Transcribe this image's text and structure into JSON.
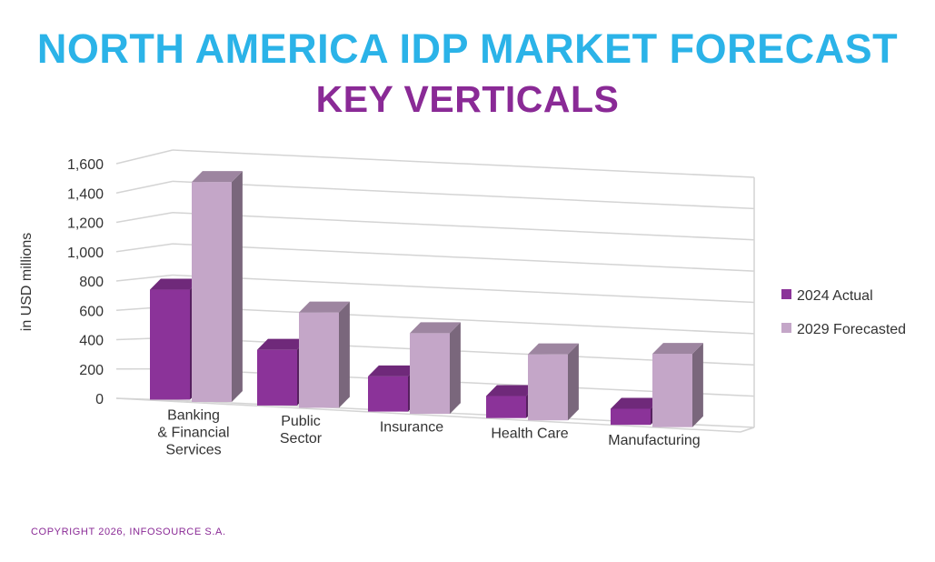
{
  "title": "NORTH AMERICA IDP MARKET FORECAST",
  "subtitle": "KEY VERTICALS",
  "copyright": "COPYRIGHT 2026, INFOSOURCE S.A.",
  "colors": {
    "title": "#2bb3e8",
    "subtitle": "#8a2a96",
    "copyright": "#8a2a96",
    "series_actual": "#8b3399",
    "series_forecast": "#c4a6c8",
    "grid": "#d4d4d4"
  },
  "chart_data": {
    "type": "bar",
    "title": "NORTH AMERICA IDP MARKET FORECAST",
    "subtitle": "KEY VERTICALS",
    "ylabel": "in USD millions",
    "xlabel": "",
    "ylim": [
      0,
      1600
    ],
    "yticks": [
      "0",
      "200",
      "400",
      "600",
      "800",
      "1,000",
      "1,200",
      "1,400",
      "1,600"
    ],
    "categories": [
      [
        "Banking",
        "& Financial",
        "Services"
      ],
      [
        "Public",
        "Sector"
      ],
      [
        "Insurance"
      ],
      [
        "Health Care"
      ],
      [
        "Manufacturing"
      ]
    ],
    "series": [
      {
        "name": "2024 Actual",
        "values": [
          750,
          380,
          240,
          150,
          110
        ]
      },
      {
        "name": "2029 Forecasted",
        "values": [
          1500,
          650,
          550,
          450,
          500
        ]
      }
    ],
    "legend_position": "right",
    "grid": true
  }
}
